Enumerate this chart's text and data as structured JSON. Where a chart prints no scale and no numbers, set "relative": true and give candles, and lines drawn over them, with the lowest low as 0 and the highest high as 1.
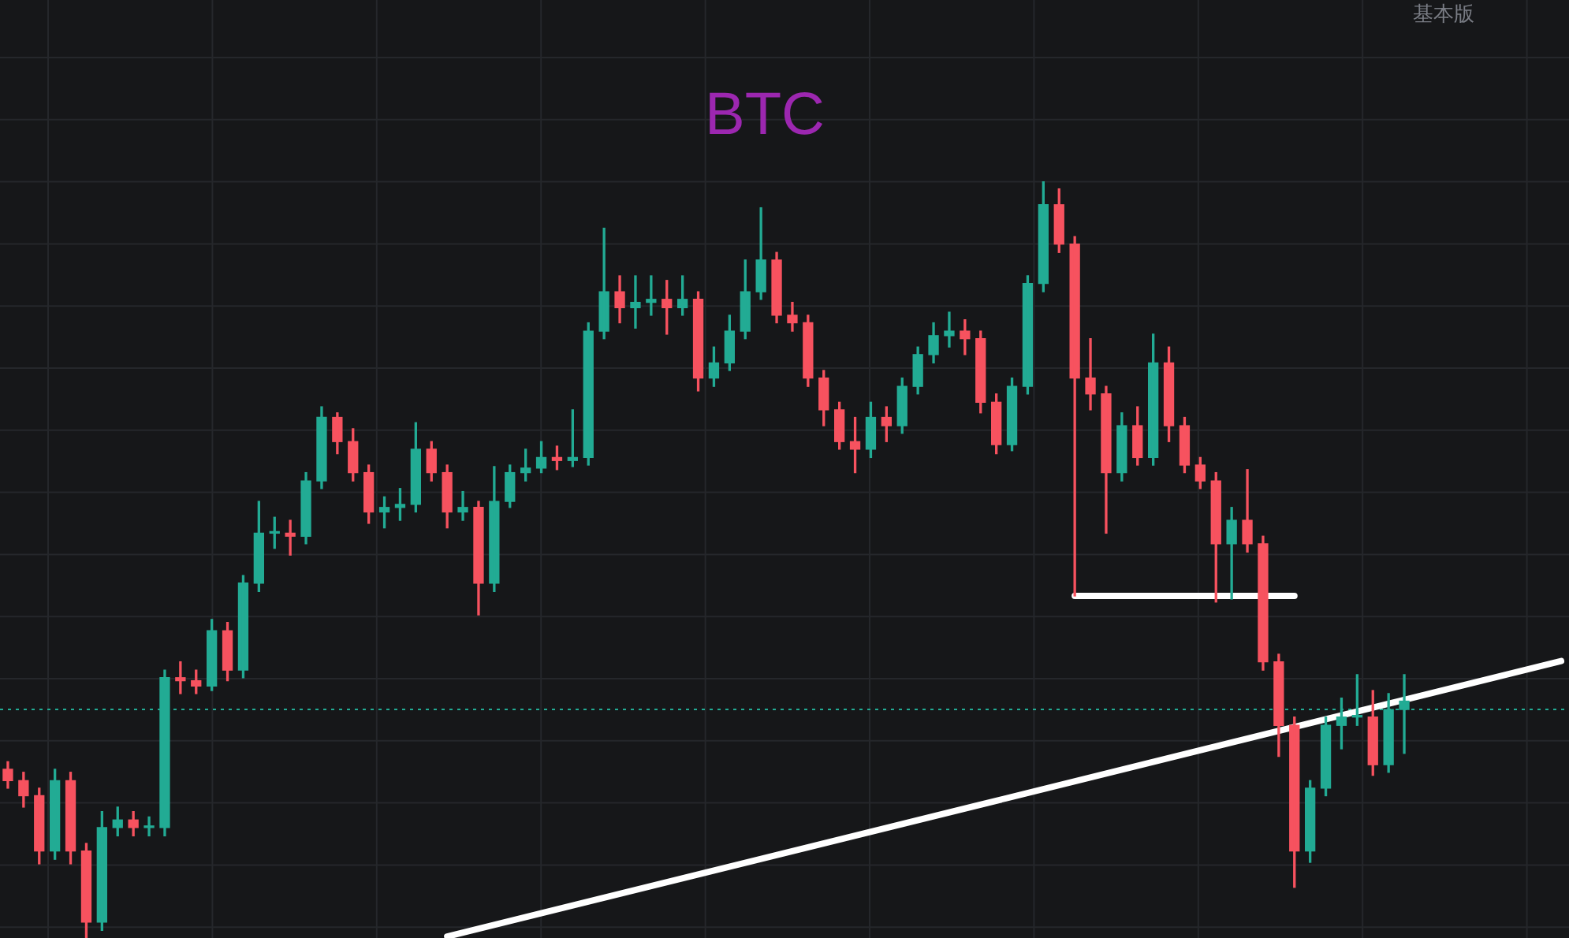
{
  "chart_data": {
    "type": "candlestick",
    "title": "BTC",
    "annotations": [
      "基本版"
    ],
    "relative": true,
    "grid": true,
    "categories": [
      null,
      null,
      null,
      null,
      null,
      null,
      null,
      null,
      null,
      null,
      null,
      null,
      null,
      null,
      null,
      null,
      null,
      null,
      null,
      null,
      null,
      null,
      null,
      null,
      null,
      null,
      null,
      null,
      null,
      null,
      null,
      null,
      null,
      null,
      null,
      null,
      null,
      null,
      null,
      null,
      null,
      null,
      null,
      null,
      null,
      null,
      null,
      null,
      null,
      null,
      null,
      null,
      null,
      null,
      null,
      null,
      null,
      null,
      null,
      null,
      null,
      null,
      null,
      null,
      null,
      null,
      null,
      null,
      null,
      null,
      null,
      null,
      null,
      null,
      null,
      null,
      null,
      null,
      null,
      null,
      null,
      null,
      null,
      null,
      null,
      null,
      null,
      null,
      null,
      null,
      null,
      null,
      null,
      null,
      null,
      null,
      null,
      null,
      null,
      null
    ],
    "ohlc": [
      [
        0.223,
        0.233,
        0.198,
        0.208
      ],
      [
        0.208,
        0.219,
        0.173,
        0.188
      ],
      [
        0.188,
        0.198,
        0.098,
        0.115
      ],
      [
        0.115,
        0.223,
        0.104,
        0.208
      ],
      [
        0.208,
        0.219,
        0.098,
        0.115
      ],
      [
        0.115,
        0.125,
        0,
        0.021
      ],
      [
        0.021,
        0.167,
        0.01,
        0.146
      ],
      [
        0.146,
        0.173,
        0.135,
        0.156
      ],
      [
        0.156,
        0.167,
        0.135,
        0.146
      ],
      [
        0.146,
        0.16,
        0.135,
        0.146
      ],
      [
        0.146,
        0.354,
        0.135,
        0.344
      ],
      [
        0.344,
        0.365,
        0.323,
        0.34
      ],
      [
        0.34,
        0.354,
        0.323,
        0.333
      ],
      [
        0.333,
        0.421,
        0.327,
        0.406
      ],
      [
        0.406,
        0.417,
        0.34,
        0.354
      ],
      [
        0.354,
        0.479,
        0.344,
        0.469
      ],
      [
        0.469,
        0.577,
        0.458,
        0.535
      ],
      [
        0.535,
        0.556,
        0.515,
        0.535
      ],
      [
        0.535,
        0.552,
        0.506,
        0.531
      ],
      [
        0.531,
        0.615,
        0.521,
        0.604
      ],
      [
        0.604,
        0.702,
        0.594,
        0.688
      ],
      [
        0.688,
        0.694,
        0.64,
        0.656
      ],
      [
        0.656,
        0.673,
        0.604,
        0.615
      ],
      [
        0.615,
        0.625,
        0.548,
        0.563
      ],
      [
        0.563,
        0.583,
        0.542,
        0.569
      ],
      [
        0.569,
        0.594,
        0.552,
        0.573
      ],
      [
        0.573,
        0.681,
        0.563,
        0.646
      ],
      [
        0.646,
        0.656,
        0.604,
        0.615
      ],
      [
        0.615,
        0.625,
        0.542,
        0.563
      ],
      [
        0.563,
        0.59,
        0.552,
        0.569
      ],
      [
        0.569,
        0.577,
        0.427,
        0.469
      ],
      [
        0.469,
        0.623,
        0.458,
        0.577
      ],
      [
        0.577,
        0.625,
        0.569,
        0.615
      ],
      [
        0.615,
        0.646,
        0.604,
        0.621
      ],
      [
        0.621,
        0.656,
        0.615,
        0.635
      ],
      [
        0.635,
        0.65,
        0.619,
        0.631
      ],
      [
        0.631,
        0.698,
        0.623,
        0.635
      ],
      [
        0.635,
        0.813,
        0.625,
        0.802
      ],
      [
        0.802,
        0.938,
        0.792,
        0.854
      ],
      [
        0.854,
        0.875,
        0.813,
        0.833
      ],
      [
        0.833,
        0.875,
        0.806,
        0.84
      ],
      [
        0.84,
        0.875,
        0.823,
        0.844
      ],
      [
        0.844,
        0.869,
        0.798,
        0.833
      ],
      [
        0.833,
        0.875,
        0.823,
        0.844
      ],
      [
        0.844,
        0.854,
        0.723,
        0.74
      ],
      [
        0.74,
        0.781,
        0.729,
        0.76
      ],
      [
        0.76,
        0.823,
        0.75,
        0.802
      ],
      [
        0.802,
        0.896,
        0.792,
        0.854
      ],
      [
        0.854,
        0.965,
        0.844,
        0.896
      ],
      [
        0.896,
        0.906,
        0.813,
        0.823
      ],
      [
        0.823,
        0.84,
        0.802,
        0.813
      ],
      [
        0.813,
        0.823,
        0.729,
        0.74
      ],
      [
        0.74,
        0.75,
        0.677,
        0.698
      ],
      [
        0.698,
        0.708,
        0.646,
        0.656
      ],
      [
        0.656,
        0.688,
        0.615,
        0.646
      ],
      [
        0.646,
        0.708,
        0.635,
        0.688
      ],
      [
        0.688,
        0.702,
        0.656,
        0.677
      ],
      [
        0.677,
        0.74,
        0.667,
        0.729
      ],
      [
        0.729,
        0.781,
        0.719,
        0.771
      ],
      [
        0.771,
        0.813,
        0.76,
        0.796
      ],
      [
        0.796,
        0.827,
        0.781,
        0.802
      ],
      [
        0.802,
        0.817,
        0.771,
        0.792
      ],
      [
        0.792,
        0.802,
        0.694,
        0.708
      ],
      [
        0.708,
        0.719,
        0.64,
        0.652
      ],
      [
        0.652,
        0.74,
        0.644,
        0.729
      ],
      [
        0.729,
        0.875,
        0.719,
        0.865
      ],
      [
        0.865,
        1,
        0.854,
        0.969
      ],
      [
        0.969,
        0.99,
        0.906,
        0.917
      ],
      [
        0.917,
        0.927,
        0.452,
        0.74
      ],
      [
        0.74,
        0.792,
        0.698,
        0.719
      ],
      [
        0.719,
        0.729,
        0.535,
        0.615
      ],
      [
        0.615,
        0.694,
        0.604,
        0.677
      ],
      [
        0.677,
        0.702,
        0.625,
        0.635
      ],
      [
        0.635,
        0.798,
        0.625,
        0.76
      ],
      [
        0.76,
        0.781,
        0.656,
        0.677
      ],
      [
        0.677,
        0.688,
        0.615,
        0.625
      ],
      [
        0.625,
        0.635,
        0.594,
        0.604
      ],
      [
        0.604,
        0.615,
        0.444,
        0.521
      ],
      [
        0.521,
        0.569,
        0.448,
        0.552
      ],
      [
        0.552,
        0.619,
        0.51,
        0.521
      ],
      [
        0.521,
        0.531,
        0.354,
        0.365
      ],
      [
        0.365,
        0.375,
        0.24,
        0.281
      ],
      [
        0.281,
        0.292,
        0.067,
        0.115
      ],
      [
        0.115,
        0.208,
        0.1,
        0.198
      ],
      [
        0.198,
        0.292,
        0.188,
        0.281
      ],
      [
        0.281,
        0.317,
        0.25,
        0.292
      ],
      [
        0.292,
        0.348,
        0.281,
        0.292
      ],
      [
        0.292,
        0.327,
        0.215,
        0.229
      ],
      [
        0.229,
        0.323,
        0.219,
        0.302
      ],
      [
        0.302,
        0.348,
        0.244,
        0.313
      ],
      null,
      null,
      null,
      null,
      null,
      null,
      null,
      null,
      null,
      null
    ],
    "colors": [
      "#f7525f",
      "#f7525f",
      "#f7525f",
      "#22ab94",
      "#f7525f",
      "#f7525f",
      "#22ab94",
      "#22ab94",
      "#f7525f",
      "#22ab94",
      "#22ab94",
      "#f7525f",
      "#f7525f",
      "#22ab94",
      "#f7525f",
      "#22ab94",
      "#22ab94",
      "#22ab94",
      "#f7525f",
      "#22ab94",
      "#22ab94",
      "#f7525f",
      "#f7525f",
      "#f7525f",
      "#22ab94",
      "#22ab94",
      "#22ab94",
      "#f7525f",
      "#f7525f",
      "#22ab94",
      "#f7525f",
      "#22ab94",
      "#22ab94",
      "#22ab94",
      "#22ab94",
      "#f7525f",
      "#22ab94",
      "#22ab94",
      "#22ab94",
      "#f7525f",
      "#22ab94",
      "#22ab94",
      "#f7525f",
      "#22ab94",
      "#f7525f",
      "#22ab94",
      "#22ab94",
      "#22ab94",
      "#22ab94",
      "#f7525f",
      "#f7525f",
      "#f7525f",
      "#f7525f",
      "#f7525f",
      "#f7525f",
      "#22ab94",
      "#f7525f",
      "#22ab94",
      "#22ab94",
      "#22ab94",
      "#22ab94",
      "#f7525f",
      "#f7525f",
      "#f7525f",
      "#22ab94",
      "#22ab94",
      "#22ab94",
      "#f7525f",
      "#f7525f",
      "#f7525f",
      "#f7525f",
      "#22ab94",
      "#f7525f",
      "#22ab94",
      "#f7525f",
      "#f7525f",
      "#f7525f",
      "#f7525f",
      "#22ab94",
      "#f7525f",
      "#f7525f",
      "#f7525f",
      "#f7525f",
      "#22ab94",
      "#22ab94",
      "#22ab94",
      "#22ab94",
      "#f7525f",
      "#22ab94",
      "#22ab94",
      null,
      null,
      null,
      null,
      null,
      null,
      null,
      null,
      null,
      null
    ],
    "series": [
      {
        "type": "line",
        "color": "#ffffff",
        "values": [
          null,
          null,
          null,
          null,
          null,
          null,
          null,
          null,
          null,
          null,
          null,
          null,
          null,
          null,
          null,
          null,
          null,
          null,
          null,
          null,
          null,
          null,
          null,
          null,
          null,
          null,
          null,
          null,
          null,
          null,
          null,
          null,
          null,
          null,
          null,
          null,
          null,
          null,
          null,
          null,
          null,
          null,
          null,
          null,
          null,
          null,
          null,
          null,
          null,
          null,
          null,
          null,
          null,
          null,
          null,
          null,
          null,
          null,
          null,
          null,
          null,
          null,
          null,
          null,
          null,
          null,
          null,
          null,
          0.452,
          null,
          null,
          null,
          null,
          null,
          null,
          null,
          null,
          null,
          null,
          null,
          null,
          null,
          0.452,
          null,
          null,
          null,
          null,
          null,
          null,
          null,
          null,
          null,
          null,
          null,
          null,
          null,
          null,
          null,
          null,
          null
        ]
      },
      {
        "type": "line",
        "color": "#ffffff",
        "values": [
          null,
          null,
          null,
          null,
          null,
          null,
          null,
          null,
          null,
          null,
          null,
          null,
          null,
          null,
          null,
          null,
          null,
          null,
          null,
          null,
          null,
          null,
          null,
          null,
          null,
          null,
          null,
          null,
          0.002,
          null,
          null,
          null,
          null,
          null,
          null,
          null,
          null,
          null,
          null,
          null,
          null,
          null,
          null,
          null,
          null,
          null,
          null,
          null,
          null,
          null,
          null,
          null,
          null,
          null,
          null,
          null,
          null,
          null,
          null,
          null,
          null,
          null,
          null,
          null,
          null,
          null,
          null,
          null,
          null,
          null,
          null,
          null,
          null,
          null,
          null,
          null,
          null,
          null,
          null,
          null,
          null,
          null,
          null,
          null,
          null,
          null,
          null,
          null,
          null,
          null,
          null,
          null,
          null,
          null,
          null,
          null,
          null,
          null,
          null,
          0.366
        ]
      }
    ],
    "ref_lines": [
      {
        "axis": "y",
        "value": 0.302,
        "color": "#22ab94",
        "line_style": "dotted"
      }
    ]
  }
}
